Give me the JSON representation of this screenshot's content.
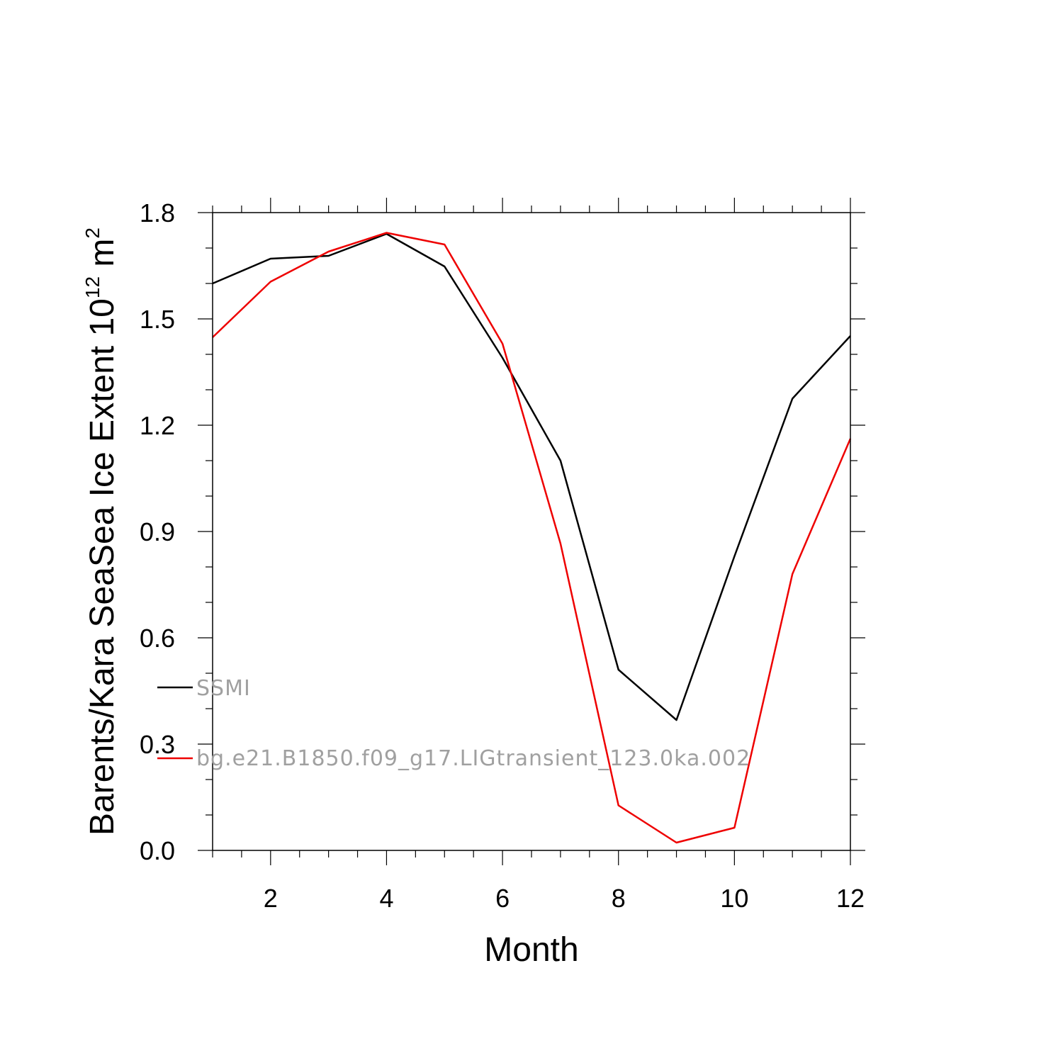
{
  "chart_data": {
    "type": "line",
    "xlabel": "Month",
    "ylabel": {
      "prefix": "Barents/Kara SeaSea Ice Extent 10",
      "exp1": "12",
      "unit": " m",
      "exp2": "2"
    },
    "xlim": [
      1,
      12
    ],
    "ylim": [
      0.0,
      1.8
    ],
    "xticks": [
      2,
      4,
      6,
      8,
      10,
      12
    ],
    "xtick_labels": [
      "2",
      "4",
      "6",
      "8",
      "10",
      "12"
    ],
    "yticks": [
      0.0,
      0.3,
      0.6,
      0.9,
      1.2,
      1.5,
      1.8
    ],
    "ytick_labels": [
      "0.0",
      "0.3",
      "0.6",
      "0.9",
      "1.2",
      "1.5",
      "1.8"
    ],
    "grid": false,
    "legend_position": "lower-left, inside",
    "x": [
      1,
      2,
      3,
      4,
      5,
      6,
      7,
      8,
      9,
      10,
      11,
      12
    ],
    "series": [
      {
        "name": "SSMI",
        "color": "#000000",
        "values": [
          1.6,
          1.67,
          1.678,
          1.74,
          1.648,
          1.39,
          1.1,
          0.51,
          0.368,
          0.83,
          1.275,
          1.452
        ]
      },
      {
        "name": "bg.e21.B1850.f09_g17.LIGtransient_123.0ka.002",
        "color": "#ee0000",
        "values": [
          1.448,
          1.605,
          1.69,
          1.743,
          1.71,
          1.43,
          0.866,
          0.127,
          0.022,
          0.064,
          0.78,
          1.162
        ]
      }
    ]
  }
}
